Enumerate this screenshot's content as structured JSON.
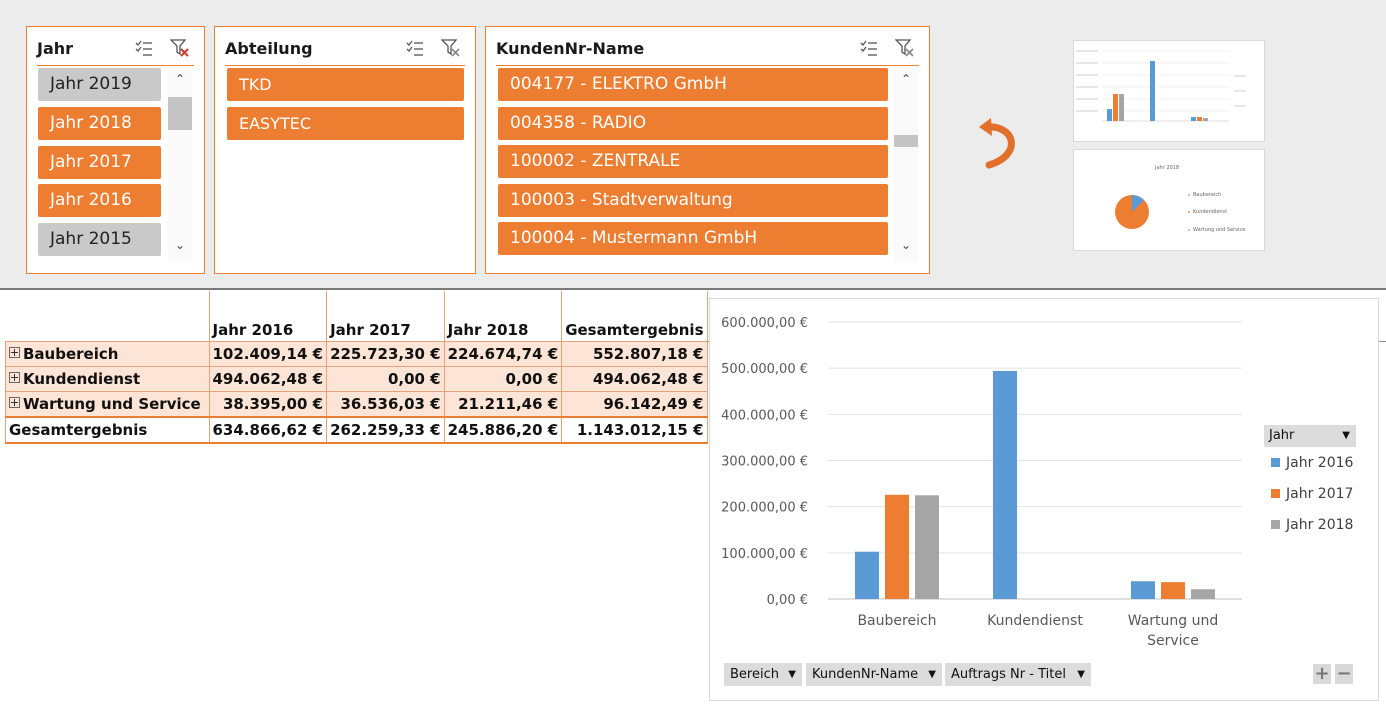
{
  "slicers": {
    "jahr": {
      "title": "Jahr",
      "items": [
        {
          "label": "Jahr 2019",
          "selected": false
        },
        {
          "label": "Jahr 2018",
          "selected": true
        },
        {
          "label": "Jahr 2017",
          "selected": true
        },
        {
          "label": "Jahr 2016",
          "selected": true
        },
        {
          "label": "Jahr 2015",
          "selected": false
        }
      ]
    },
    "abteilung": {
      "title": "Abteilung",
      "items": [
        {
          "label": "TKD",
          "selected": true
        },
        {
          "label": "EASYTEC",
          "selected": true
        }
      ]
    },
    "kunden": {
      "title": "KundenNr-Name",
      "items": [
        {
          "label": "004177 - ELEKTRO GmbH",
          "selected": true
        },
        {
          "label": "004358 - RADIO",
          "selected": true
        },
        {
          "label": "100002 - ZENTRALE",
          "selected": true
        },
        {
          "label": "100003 - Stadtverwaltung",
          "selected": true
        },
        {
          "label": "100004 - Mustermann GmbH",
          "selected": true
        }
      ]
    }
  },
  "thumb_pie_title": "Jahr 2018",
  "thumb_pie_legend": [
    "Baubereich",
    "Kundendienst",
    "Wartung und Service"
  ],
  "pivot": {
    "headers": [
      "",
      "Jahr 2016",
      "Jahr 2017",
      "Jahr 2018",
      "Gesamtergebnis"
    ],
    "rows": [
      {
        "label": "Baubereich",
        "values": [
          "102.409,14 €",
          "225.723,30 €",
          "224.674,74 €",
          "552.807,18 €"
        ]
      },
      {
        "label": "Kundendienst",
        "values": [
          "494.062,48 €",
          "0,00 €",
          "0,00 €",
          "494.062,48 €"
        ]
      },
      {
        "label": "Wartung und Service",
        "values": [
          "38.395,00 €",
          "36.536,03 €",
          "21.211,46 €",
          "96.142,49 €"
        ]
      }
    ],
    "total": {
      "label": "Gesamtergebnis",
      "values": [
        "634.866,62 €",
        "262.259,33 €",
        "245.886,20 €",
        "1.143.012,15 €"
      ]
    }
  },
  "chart_data": {
    "type": "bar",
    "title": "",
    "categories": [
      "Baubereich",
      "Kundendienst",
      "Wartung und Service"
    ],
    "category_labels": [
      [
        "Baubereich"
      ],
      [
        "Kundendienst"
      ],
      [
        "Wartung und",
        "Service"
      ]
    ],
    "series": [
      {
        "name": "Jahr 2016",
        "color": "#5b9bd5",
        "values": [
          102409.14,
          494062.48,
          38395.0
        ]
      },
      {
        "name": "Jahr 2017",
        "color": "#ed7d31",
        "values": [
          225723.3,
          0,
          36536.03
        ]
      },
      {
        "name": "Jahr 2018",
        "color": "#a5a5a5",
        "values": [
          224674.74,
          0,
          21211.46
        ]
      }
    ],
    "ylim": [
      0,
      600000
    ],
    "yticks": [
      0,
      100000,
      200000,
      300000,
      400000,
      500000,
      600000
    ],
    "ytick_labels": [
      "0,00 €",
      "100.000,00 €",
      "200.000,00 €",
      "300.000,00 €",
      "400.000,00 €",
      "500.000,00 €",
      "600.000,00 €"
    ],
    "legend_title": "Jahr",
    "legend_position": "right",
    "grid": true
  },
  "chart_filters": [
    "Bereich",
    "KundenNr-Name",
    "Auftrags Nr - Titel"
  ],
  "zoom": {
    "plus": "+",
    "minus": "−"
  }
}
